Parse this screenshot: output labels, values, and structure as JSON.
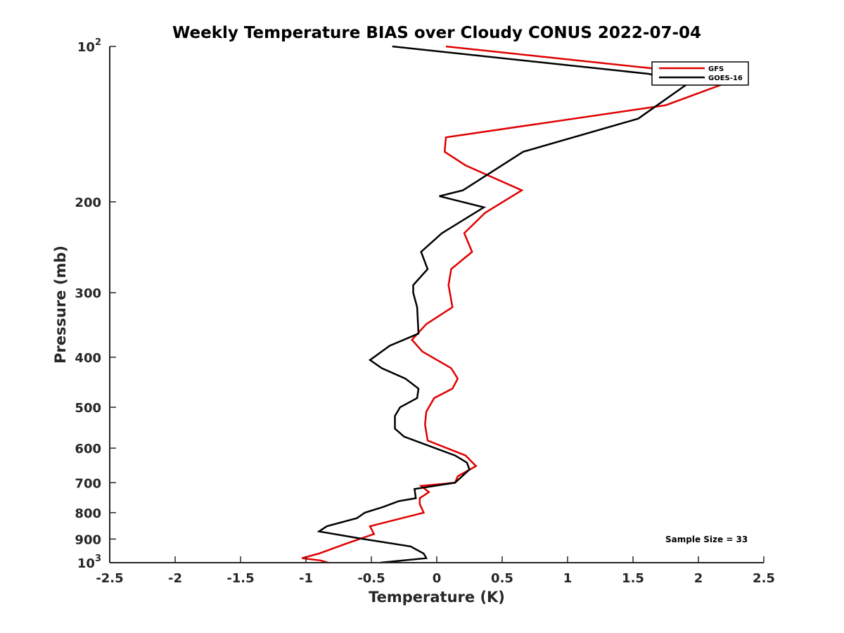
{
  "chart_data": {
    "type": "line",
    "title": "Weekly Temperature BIAS over Cloudy CONUS 2022-07-04",
    "xlabel": "Temperature (K)",
    "ylabel": "Pressure (mb)",
    "xlim": [
      -2.5,
      2.5
    ],
    "ylim": [
      100,
      1000
    ],
    "y_scale": "log",
    "y_reversed": true,
    "grid": false,
    "x_ticks": [
      "-2.5",
      "-2",
      "-1.5",
      "-1",
      "-0.5",
      "0",
      "0.5",
      "1",
      "1.5",
      "2",
      "2.5"
    ],
    "x_tick_values": [
      -2.5,
      -2,
      -1.5,
      -1,
      -0.5,
      0,
      0.5,
      1,
      1.5,
      2,
      2.5
    ],
    "y_ticks": [
      {
        "value": 100,
        "base": "10",
        "exp": "2"
      },
      {
        "value": 200,
        "label": "200"
      },
      {
        "value": 300,
        "label": "300"
      },
      {
        "value": 400,
        "label": "400"
      },
      {
        "value": 500,
        "label": "500"
      },
      {
        "value": 600,
        "label": "600"
      },
      {
        "value": 700,
        "label": "700"
      },
      {
        "value": 800,
        "label": "800"
      },
      {
        "value": 900,
        "label": "900"
      },
      {
        "value": 1000,
        "base": "10",
        "exp": "3"
      }
    ],
    "legend_placement": "top-right",
    "annotation": "Sample Size = 33",
    "series": [
      {
        "name": "GFS",
        "color": "#e00000",
        "x": [
          0.07,
          2.32,
          1.75,
          0.07,
          0.06,
          0.22,
          0.65,
          0.37,
          0.21,
          0.27,
          0.11,
          0.09,
          0.12,
          -0.08,
          -0.19,
          -0.11,
          0.11,
          0.16,
          0.12,
          -0.02,
          -0.08,
          -0.09,
          -0.07,
          0.22,
          0.3,
          0.16,
          0.14,
          -0.12,
          -0.06,
          -0.13,
          -0.13,
          -0.1,
          -0.51,
          -0.48,
          -0.7,
          -0.9,
          -1.03,
          -0.89,
          -0.83
        ],
        "y": [
          100,
          115,
          130,
          150,
          160,
          170,
          190,
          210,
          230,
          250,
          270,
          290,
          320,
          345,
          370,
          390,
          420,
          440,
          460,
          480,
          510,
          540,
          580,
          620,
          650,
          680,
          700,
          710,
          730,
          750,
          770,
          800,
          850,
          880,
          920,
          960,
          980,
          990,
          1000
        ]
      },
      {
        "name": "GOES-16",
        "color": "#000000",
        "x": [
          -0.34,
          1.62,
          1.92,
          1.54,
          0.66,
          0.2,
          0.02,
          0.36,
          0.04,
          -0.12,
          -0.07,
          -0.18,
          -0.18,
          -0.15,
          -0.14,
          -0.36,
          -0.51,
          -0.42,
          -0.24,
          -0.14,
          -0.15,
          -0.28,
          -0.32,
          -0.32,
          -0.25,
          0.14,
          0.23,
          0.25,
          0.14,
          -0.17,
          -0.16,
          -0.29,
          -0.41,
          -0.55,
          -0.61,
          -0.84,
          -0.9,
          -0.56,
          -0.2,
          -0.1,
          -0.08,
          -0.43
        ],
        "y": [
          100,
          113,
          118,
          138,
          160,
          190,
          195,
          205,
          230,
          250,
          270,
          290,
          300,
          320,
          360,
          380,
          405,
          420,
          440,
          460,
          480,
          500,
          520,
          550,
          570,
          620,
          640,
          660,
          700,
          720,
          750,
          760,
          780,
          800,
          820,
          850,
          870,
          900,
          930,
          960,
          980,
          1000
        ]
      }
    ]
  }
}
